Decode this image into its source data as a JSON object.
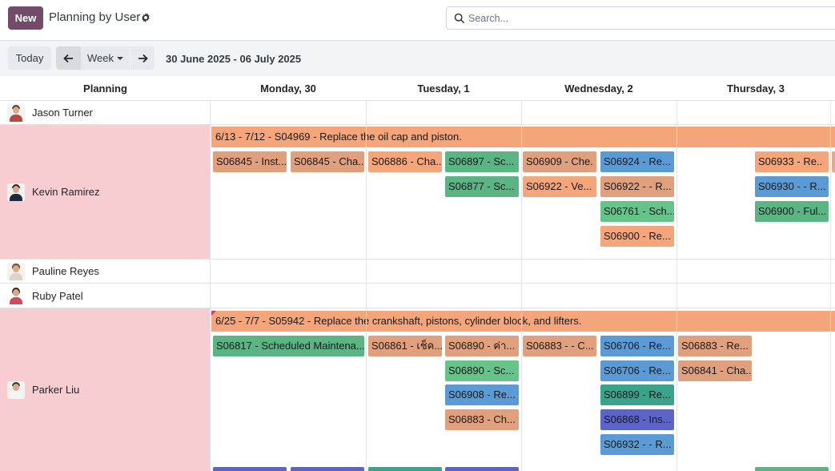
{
  "header": {
    "new_label": "New",
    "title": "Planning by User",
    "search_placeholder": "Search..."
  },
  "toolbar": {
    "today": "Today",
    "scale": "Week",
    "range": "30 June 2025 - 06 July 2025"
  },
  "columns": [
    "Planning",
    "Monday, 30",
    "Tuesday, 1",
    "Wednesday, 2",
    "Thursday, 3"
  ],
  "rows": [
    {
      "name": "Jason Turner"
    },
    {
      "name": "Kevin Ramirez"
    },
    {
      "name": "Pauline Reyes"
    },
    {
      "name": "Ruby Patel"
    },
    {
      "name": "Parker Liu"
    }
  ],
  "kevin_long": "6/13 - 7/12 - S04969 - Replace the oil cap and piston.",
  "kevin_pills": [
    "S06845 - Inst...",
    "S06845 - Cha...",
    "S06886 - Cha...",
    "S06897 - Sc...",
    "S06909 - Che.",
    "S06924 - Re...",
    "S06933 - Re..",
    "S06877 - Sc...",
    "S06922 - Ve...",
    "S06922 - - R...",
    "S06930 - - R...",
    "S06761 - Sch...",
    "S06900 - Ful...",
    "S06900 - Re..."
  ],
  "parker_long": "6/25 - 7/7 - S05942 - Replace the crankshaft, pistons, cylinder block, and lifters.",
  "parker_pills": [
    "S06817 - Scheduled Maintena...",
    "S06861 - เช็ค...",
    "S06890 - ค่า...",
    "S06883 - - C...",
    "S06706 - Re...",
    "S06883 - Re...",
    "S06890 - Sc...",
    "S06706 - Re...",
    "S06841 - Cha..",
    "S06908 - Re...",
    "S06899 - Re...",
    "S06883 - Ch...",
    "S06868 - Ins...",
    "S06932 - - R..."
  ]
}
